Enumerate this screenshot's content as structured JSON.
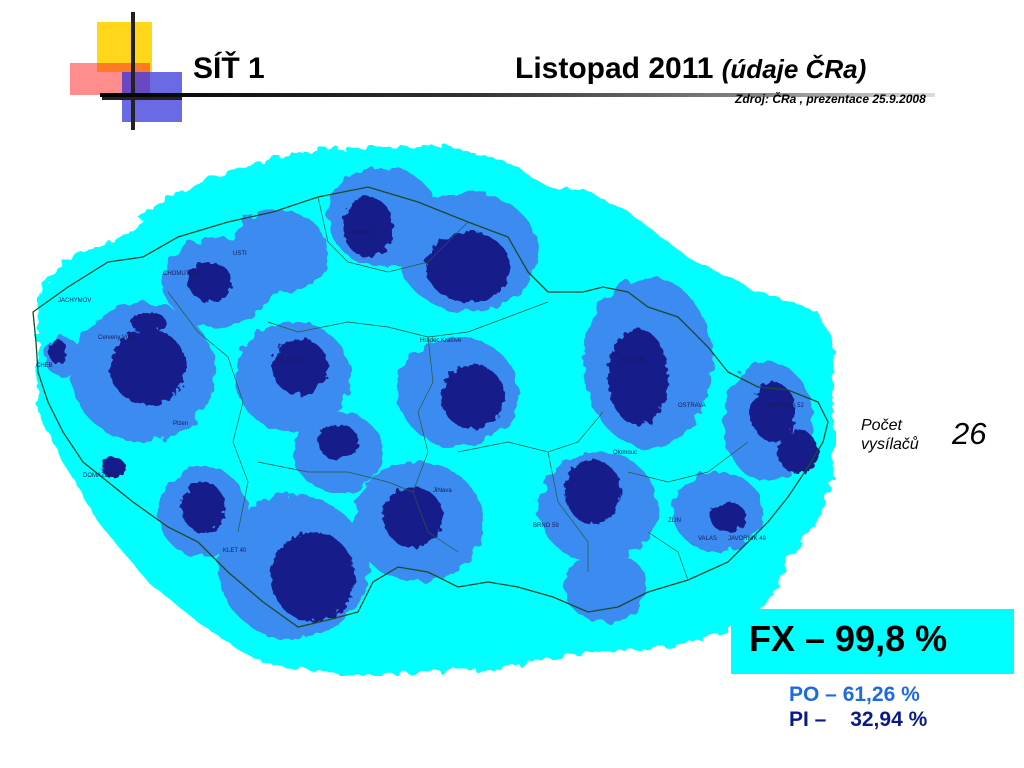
{
  "header": {
    "network": "SÍŤ 1",
    "date": "Listopad 2011",
    "data_source_paren": "(údaje ČRa)",
    "source_note": "Zdroj: ČRa , prezentace 25.9.2008"
  },
  "map": {
    "city_labels": [
      "JACHYMOV",
      "Cerveny Vrch",
      "CHEB",
      "PLZEN 41",
      "Plzen",
      "DOMAZLICE",
      "Hradec Kralove",
      "JESENIK",
      "OSTRAVA",
      "OSTRAVA 52",
      "Olomouc",
      "BRNO 59",
      "ZLIN",
      "VALAS",
      "JAVORNIK 49",
      "KLET 40",
      "CHOMUTOV",
      "USTI",
      "LIBEREC",
      "Jihlava"
    ],
    "colors": {
      "background": "#00ffff",
      "medium_coverage": "#3b8bf0",
      "strong_coverage": "#141c8a",
      "border": "#1f4a2a"
    }
  },
  "transmitters": {
    "label_line1": "Počet",
    "label_line2": "vysílačů",
    "count": "26"
  },
  "coverage": {
    "fx": "FX – 99,8 %",
    "po_label": "PO – ",
    "po_value": "61,26 %",
    "pi_label": "PI – ",
    "pi_value": "32,94 %"
  }
}
